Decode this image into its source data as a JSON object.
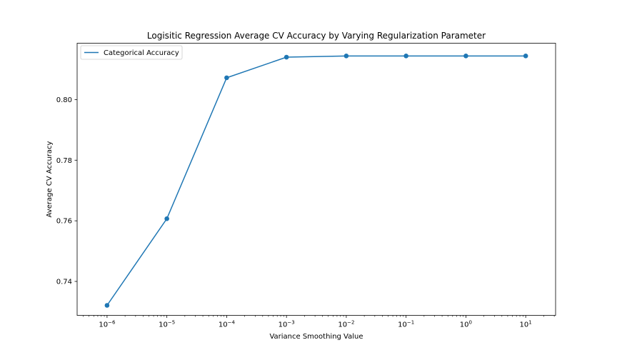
{
  "chart_data": {
    "type": "line",
    "title": "Logisitic Regression Average CV Accuracy by Varying Regularization Parameter",
    "xlabel": "Variance Smoothing Value",
    "ylabel": "Average CV Accuracy",
    "x_scale": "log",
    "x_ticks": [
      {
        "value": 1e-06,
        "base": "10",
        "exp": "−6"
      },
      {
        "value": 1e-05,
        "base": "10",
        "exp": "−5"
      },
      {
        "value": 0.0001,
        "base": "10",
        "exp": "−4"
      },
      {
        "value": 0.001,
        "base": "10",
        "exp": "−3"
      },
      {
        "value": 0.01,
        "base": "10",
        "exp": "−2"
      },
      {
        "value": 0.1,
        "base": "10",
        "exp": "−1"
      },
      {
        "value": 1,
        "base": "10",
        "exp": "0"
      },
      {
        "value": 10,
        "base": "10",
        "exp": "1"
      }
    ],
    "y_ticks": [
      "0.74",
      "0.76",
      "0.78",
      "0.80"
    ],
    "xlim": [
      3.16e-07,
      31.6
    ],
    "ylim": [
      0.7288,
      0.8186
    ],
    "grid": false,
    "legend_position": "top-left",
    "series": [
      {
        "name": "Categorical Accuracy",
        "color": "#1f77b4",
        "marker": "circle",
        "x": [
          1e-06,
          1e-05,
          0.0001,
          0.001,
          0.01,
          0.1,
          1,
          10
        ],
        "y": [
          0.7321,
          0.7607,
          0.8072,
          0.814,
          0.8144,
          0.8144,
          0.8144,
          0.8144
        ]
      }
    ]
  }
}
